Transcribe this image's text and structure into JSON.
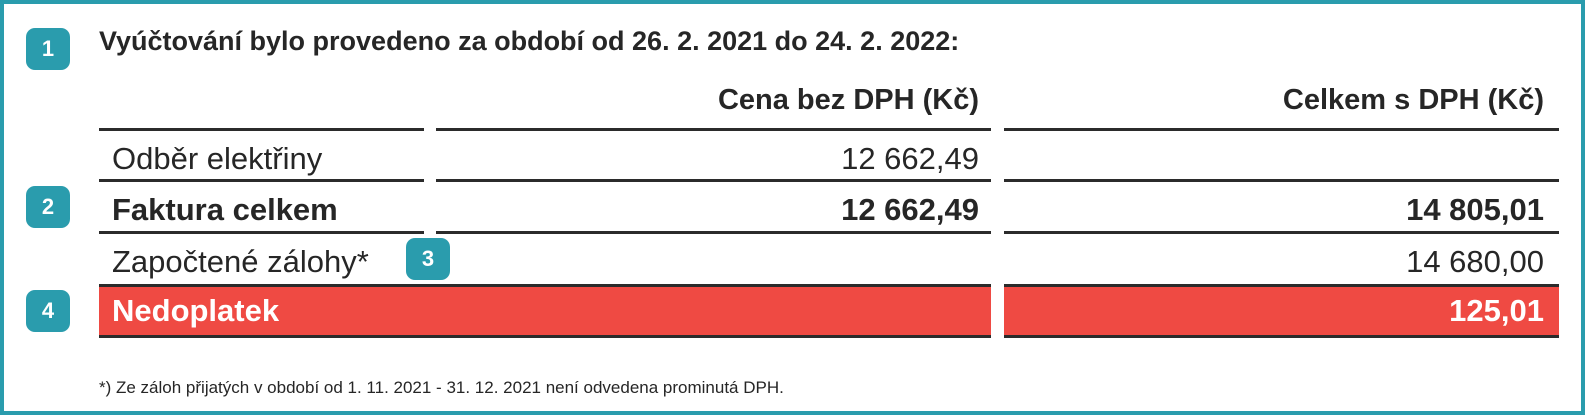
{
  "heading": "Vyúčtování bylo provedeno za období od 26. 2. 2021 do 24. 2. 2022:",
  "columns": {
    "net": "Cena bez DPH (Kč)",
    "gross": "Celkem s DPH (Kč)"
  },
  "badges": [
    "1",
    "2",
    "3",
    "4"
  ],
  "rows": [
    {
      "label": "Odběr elektřiny",
      "net": "12 662,49",
      "gross": ""
    },
    {
      "label": "Faktura celkem",
      "net": "12 662,49",
      "gross": "14 805,01"
    },
    {
      "label": "Započtené zálohy*",
      "net": "",
      "gross": "14 680,00"
    },
    {
      "label": "Nedoplatek",
      "net": "",
      "gross": "125,01"
    }
  ],
  "footnote": "*) Ze záloh přijatých v období od 1. 11. 2021 - 31. 12. 2021 není odvedena prominutá DPH.",
  "colors": {
    "accent": "#2a9cad",
    "highlight": "#ef4a43"
  }
}
